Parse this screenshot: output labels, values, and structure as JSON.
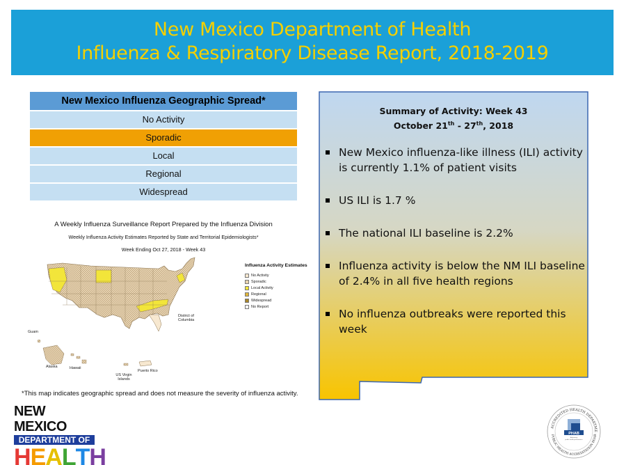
{
  "banner": {
    "title_line1": "New Mexico Department of Health",
    "title_line2": "Influenza & Respiratory Disease Report, 2018-2019"
  },
  "spread_table": {
    "header": "New Mexico Influenza Geographic Spread*",
    "rows": [
      "No Activity",
      "Sporadic",
      "Local",
      "Regional",
      "Widespread"
    ],
    "active_level": "Sporadic",
    "colors": {
      "header": "#5b9bd5",
      "row": "#c5dff2",
      "active": "#f0a004"
    }
  },
  "cdc_map": {
    "title": "A Weekly Influenza Surveillance Report Prepared by the Influenza Division",
    "subtitle": "Weekly Influenza Activity Estimates Reported by State and Territorial Epidemiologists*",
    "week": "Week Ending Oct 27, 2018 - Week 43",
    "legend_title": "Influenza Activity Estimates",
    "legend": [
      {
        "label": "No Activity",
        "color": "#f7e8d0"
      },
      {
        "label": "Sporadic",
        "color": "#e8d3b0"
      },
      {
        "label": "Local Activity",
        "color": "#f2e53a"
      },
      {
        "label": "Regional",
        "color": "#e0b63a"
      },
      {
        "label": "Widespread",
        "color": "#a8862a"
      },
      {
        "label": "No Report",
        "color": "#ffffff"
      }
    ],
    "labels": {
      "dc": "District of Columbia",
      "guam": "Guam",
      "alaska": "Alaska",
      "hawaii": "Hawaii",
      "usvi": "US Virgin Islands",
      "pr": "Puerto Rico"
    },
    "footnote": "*This map indicates geographic spread and does not measure the severity of influenza activity."
  },
  "summary": {
    "title_line1": "Summary of Activity: Week 43",
    "date_prefix": "October 21",
    "date_sup1": "th",
    "date_mid": " - 27",
    "date_sup2": "th",
    "date_suffix": ", 2018",
    "bullets": [
      "New Mexico influenza-like illness (ILI) activity is currently 1.1% of patient visits",
      "US ILI is 1.7 %",
      "The national ILI baseline is 2.2%",
      "Influenza activity is below the NM ILI baseline of 2.4% in all five health regions",
      "No influenza outbreaks were reported this week"
    ],
    "gradient": {
      "top": "#bfd7f0",
      "bottom": "#f8c400"
    }
  },
  "logo": {
    "line1": "NEW MEXICO",
    "line2": "DEPARTMENT OF",
    "letters": [
      "H",
      "E",
      "A",
      "L",
      "T",
      "H"
    ],
    "letter_colors": [
      "#e53935",
      "#f59b00",
      "#f4d100",
      "#3fa535",
      "#1e88e5",
      "#7b3fa0"
    ]
  },
  "phab": {
    "ring_top": "ACCREDITED HEALTH DEPARTMENT",
    "ring_bottom": "PUBLIC HEALTH ACCREDITATION BOARD",
    "mark": "PHAB",
    "tagline": "Advancing public health performance"
  }
}
